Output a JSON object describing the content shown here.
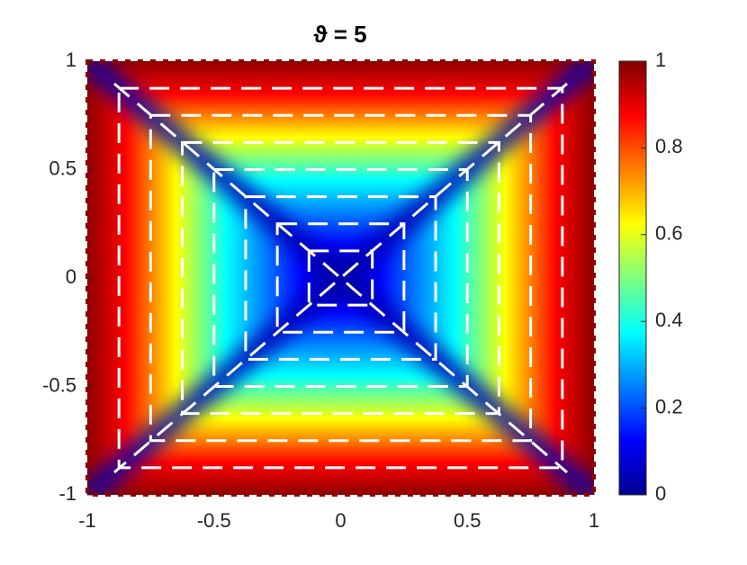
{
  "chart_data": {
    "type": "heatmap",
    "title": "ϑ = 5",
    "colormap": "jet",
    "xlim": [
      -1,
      1
    ],
    "ylim": [
      -1,
      1
    ],
    "xticks": [
      -1,
      -0.5,
      0,
      0.5,
      1
    ],
    "yticks": [
      -1,
      -0.5,
      0,
      0.5,
      1
    ],
    "clim": [
      0,
      1
    ],
    "cticks": [
      0,
      0.2,
      0.4,
      0.6,
      0.8,
      1
    ]
  }
}
